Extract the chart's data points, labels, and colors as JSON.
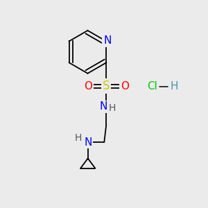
{
  "bg_color": "#ebebeb",
  "atom_colors": {
    "N": "#0000ff",
    "S": "#cccc00",
    "O": "#ff0000",
    "C": "#000000",
    "H": "#555555",
    "Cl": "#00cc00",
    "H_hcl": "#4499aa"
  },
  "font_size": 10,
  "lw": 1.3
}
